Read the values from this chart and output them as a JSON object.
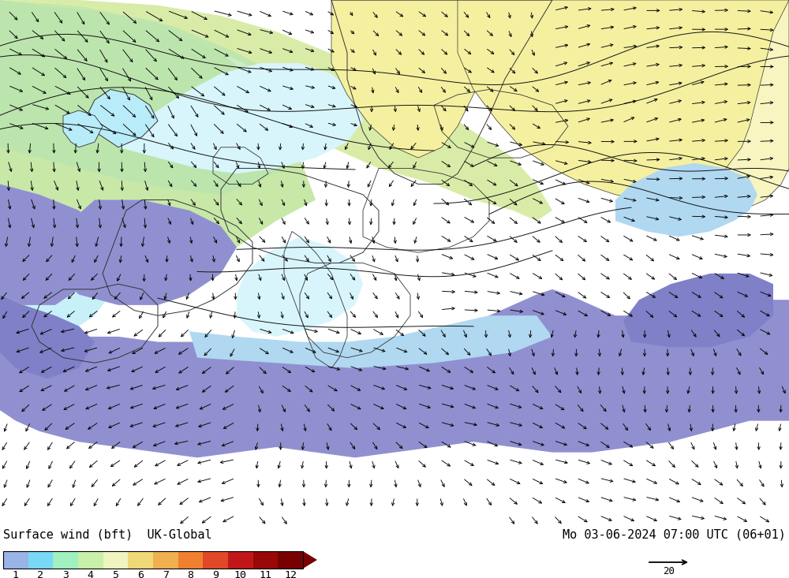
{
  "title_left": "Surface wind (bft)  UK-Global",
  "title_right": "Mo 03-06-2024 07:00 UTC (06+01)",
  "colorbar_levels": [
    1,
    2,
    3,
    4,
    5,
    6,
    7,
    8,
    9,
    10,
    11,
    12
  ],
  "colorbar_colors": [
    "#9ab4e8",
    "#78d8f5",
    "#a0f0c0",
    "#c8f0a8",
    "#f0f5c0",
    "#f0d878",
    "#f0b050",
    "#f08030",
    "#e04828",
    "#c01818",
    "#980808",
    "#780000"
  ],
  "bg_color": "#ffffff",
  "fig_width": 10.0,
  "fig_height": 7.33,
  "dpi": 100,
  "font_family": "monospace",
  "title_fontsize": 11,
  "wind_arrow_color": "#000000",
  "colorbar_arrow_color": "#780000",
  "reference_arrow_label": "20",
  "colors": {
    "ocean_bg": "#a8e0f0",
    "light_cyan": "#b8ecf8",
    "pale_cyan": "#c8f0f8",
    "very_light_cyan": "#d8f5fc",
    "light_blue_bft2": "#b0d8f0",
    "med_blue_bft3": "#88c0e0",
    "purple_blue_bft4": "#9090d0",
    "purple_bft5": "#8080c8",
    "light_green_land": "#c8e8a8",
    "pale_green_land": "#d8eca8",
    "yellow_land": "#f0e890",
    "pale_yellow_land": "#f5f0a0",
    "very_pale_yellow": "#f8f5c0",
    "land_outline": "#333333",
    "contour_line": "#111111"
  }
}
